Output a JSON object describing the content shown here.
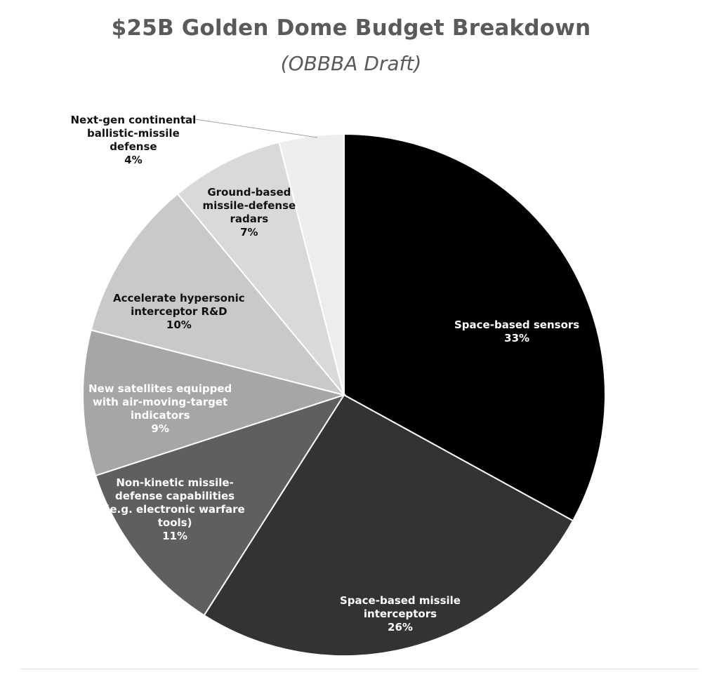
{
  "chart_data": {
    "type": "pie",
    "title": "$25B Golden Dome Budget Breakdown",
    "subtitle": "(OBBBA Draft)",
    "slices": [
      {
        "label": "Space-based sensors",
        "value": 33,
        "display": "33%",
        "color": "#000000",
        "text_color": "#ffffff"
      },
      {
        "label": "Space-based missile\ninterceptors",
        "value": 26,
        "display": "26%",
        "color": "#333333",
        "text_color": "#ffffff"
      },
      {
        "label": "Non-kinetic missile-\ndefense capabilities\n(e.g. electronic warfare\ntools)",
        "value": 11,
        "display": "11%",
        "color": "#5f5f5f",
        "text_color": "#ffffff"
      },
      {
        "label": "New satellites equipped\nwith air-moving-target\nindicators",
        "value": 9,
        "display": "9%",
        "color": "#a6a6a6",
        "text_color": "#ffffff"
      },
      {
        "label": "Accelerate hypersonic\ninterceptor R&D",
        "value": 10,
        "display": "10%",
        "color": "#c9c9c9",
        "text_color": "#111111"
      },
      {
        "label": "Ground-based\nmissile-defense\nradars",
        "value": 7,
        "display": "7%",
        "color": "#d9d9d9",
        "text_color": "#111111"
      },
      {
        "label": "Next-gen continental\nballistic-missile\ndefense",
        "value": 4,
        "display": "4%",
        "color": "#ededed",
        "text_color": "#111111"
      }
    ],
    "legend": "none"
  }
}
